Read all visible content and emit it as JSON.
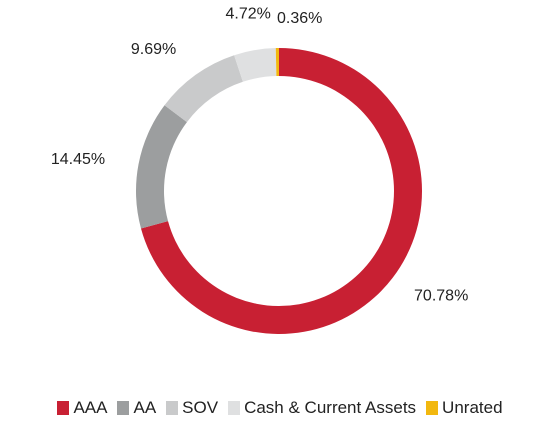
{
  "chart_data": {
    "type": "pie",
    "donut": true,
    "title": "",
    "categories": [
      "AAA",
      "AA",
      "SOV",
      "Cash & Current Assets",
      "Unrated"
    ],
    "values": [
      70.78,
      14.45,
      9.69,
      4.72,
      0.36
    ],
    "value_labels": [
      "70.78%",
      "14.45%",
      "9.69%",
      "4.72%",
      "0.36%"
    ],
    "colors": [
      "#c82033",
      "#9c9e9f",
      "#c9cacb",
      "#dfe0e1",
      "#f2b80f"
    ],
    "legend_position": "bottom"
  }
}
